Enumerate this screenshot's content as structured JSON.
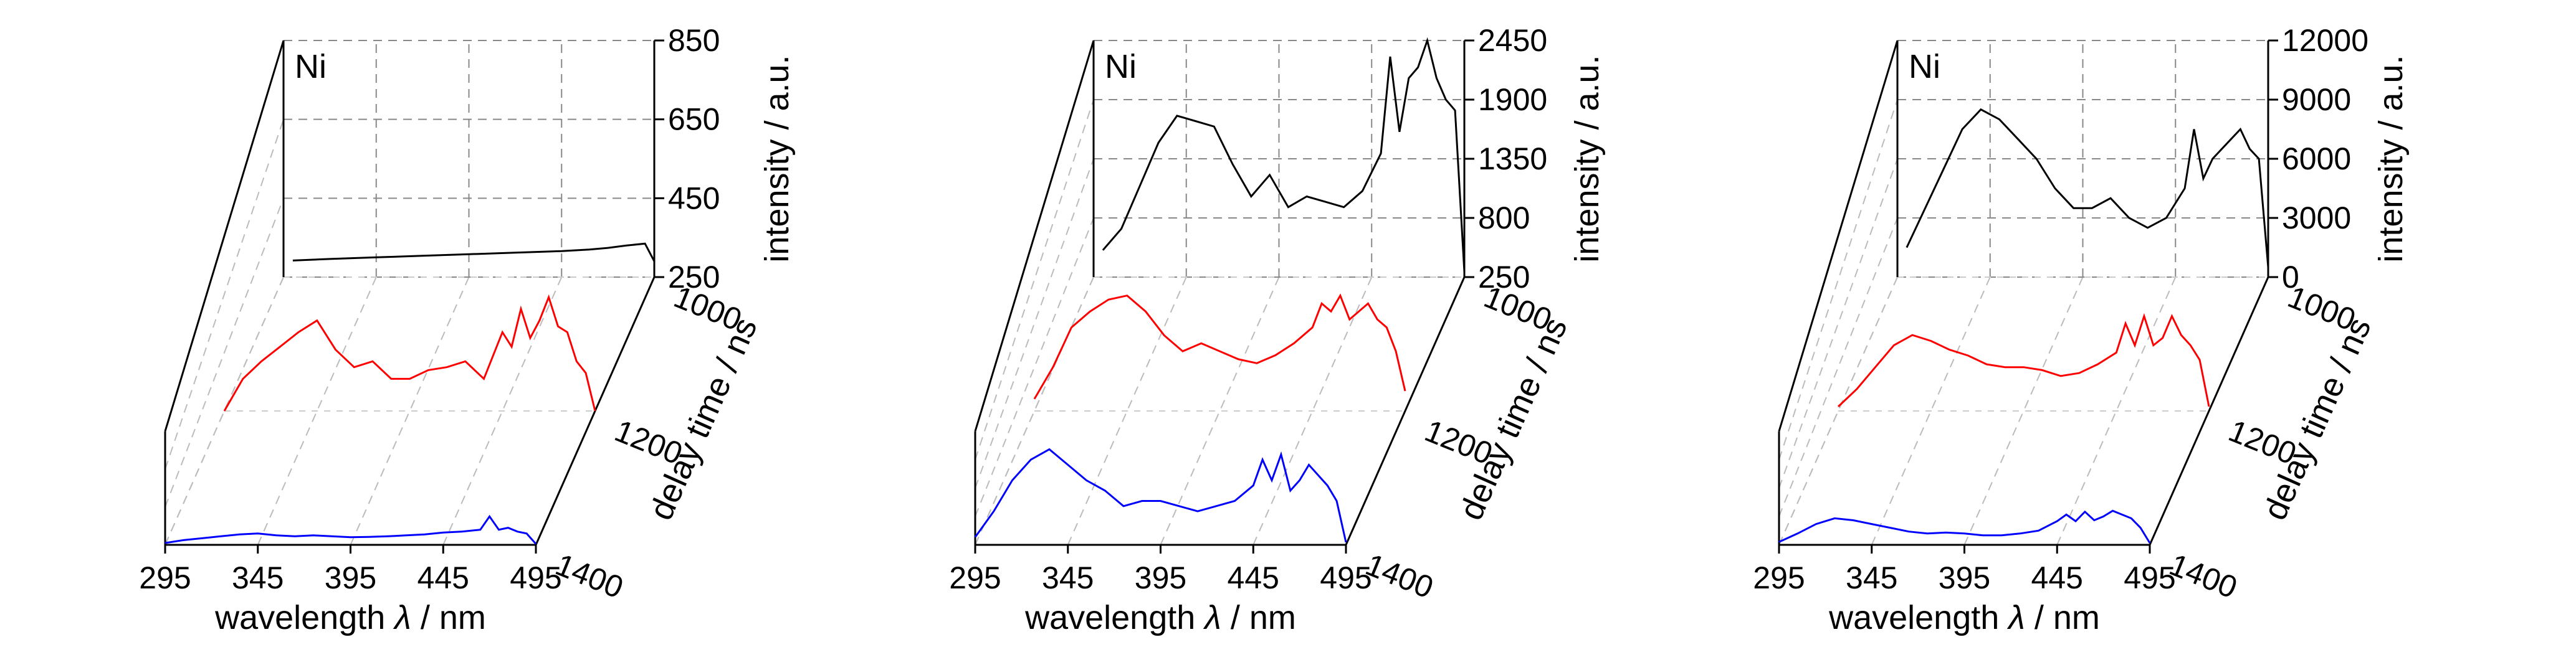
{
  "chart_data": [
    {
      "type": "line",
      "label": "Ni",
      "xlabel_prefix": "wavelength ",
      "xlabel_symbol": "λ",
      "xlabel_suffix": " / nm",
      "zlabel": "intensity / a.u.",
      "ylabel": "delay time / ns",
      "xlim": [
        295,
        495
      ],
      "xticks": [
        "295",
        "345",
        "395",
        "445",
        "495"
      ],
      "zlim": [
        250,
        850
      ],
      "zticks": [
        "250",
        "450",
        "650",
        "850"
      ],
      "yticks": [
        "1000",
        "1200",
        "1400"
      ],
      "series": [
        {
          "delay": 1000,
          "color": "#000000",
          "x": [
            300,
            320,
            345,
            370,
            395,
            420,
            445,
            460,
            470,
            480,
            490,
            495
          ],
          "y": [
            292,
            296,
            300,
            304,
            308,
            312,
            316,
            320,
            324,
            330,
            335,
            290
          ]
        },
        {
          "delay": 1200,
          "color": "#ff0000",
          "x": [
            295,
            305,
            315,
            325,
            335,
            345,
            355,
            365,
            375,
            385,
            395,
            405,
            415,
            425,
            435,
            445,
            450,
            455,
            460,
            465,
            470,
            475,
            480,
            485,
            490,
            495
          ],
          "y": [
            220,
            360,
            420,
            470,
            520,
            560,
            460,
            400,
            420,
            360,
            360,
            390,
            400,
            420,
            360,
            520,
            470,
            600,
            500,
            560,
            640,
            540,
            520,
            420,
            380,
            200
          ]
        },
        {
          "delay": 1400,
          "color": "#0000ff",
          "x": [
            295,
            305,
            315,
            325,
            335,
            345,
            355,
            365,
            375,
            385,
            395,
            405,
            415,
            425,
            435,
            445,
            455,
            465,
            470,
            475,
            480,
            485,
            490,
            495
          ],
          "y": [
            260,
            275,
            285,
            295,
            305,
            310,
            300,
            295,
            300,
            295,
            290,
            292,
            295,
            300,
            305,
            315,
            320,
            330,
            400,
            330,
            340,
            320,
            310,
            255
          ]
        }
      ]
    },
    {
      "type": "line",
      "label": "Ni",
      "xlabel_prefix": "wavelength ",
      "xlabel_symbol": "λ",
      "xlabel_suffix": " / nm",
      "zlabel": "intensity / a.u.",
      "ylabel": "delay time / ns",
      "xlim": [
        295,
        495
      ],
      "xticks": [
        "295",
        "345",
        "395",
        "445",
        "495"
      ],
      "zlim": [
        250,
        2450
      ],
      "zticks": [
        "250",
        "800",
        "1350",
        "1900",
        "2450"
      ],
      "yticks": [
        "1000",
        "1200",
        "1400"
      ],
      "series": [
        {
          "delay": 1000,
          "color": "#000000",
          "x": [
            300,
            310,
            320,
            330,
            340,
            350,
            360,
            370,
            380,
            390,
            400,
            410,
            420,
            430,
            440,
            450,
            455,
            460,
            465,
            470,
            475,
            480,
            485,
            490,
            495
          ],
          "y": [
            500,
            700,
            1100,
            1500,
            1750,
            1700,
            1650,
            1300,
            1000,
            1200,
            900,
            1000,
            950,
            900,
            1050,
            1400,
            2300,
            1600,
            2100,
            2200,
            2450,
            2100,
            1900,
            1800,
            300
          ]
        },
        {
          "delay": 1200,
          "color": "#ff0000",
          "x": [
            295,
            305,
            315,
            325,
            335,
            345,
            355,
            365,
            375,
            385,
            395,
            405,
            415,
            425,
            435,
            445,
            450,
            455,
            460,
            465,
            470,
            475,
            480,
            485,
            490,
            495
          ],
          "y": [
            400,
            800,
            1300,
            1500,
            1650,
            1700,
            1500,
            1200,
            1000,
            1100,
            1000,
            900,
            850,
            950,
            1100,
            1300,
            1600,
            1500,
            1700,
            1400,
            1500,
            1600,
            1400,
            1300,
            1000,
            500
          ]
        },
        {
          "delay": 1400,
          "color": "#0000ff",
          "x": [
            295,
            305,
            315,
            325,
            335,
            345,
            355,
            365,
            375,
            385,
            395,
            405,
            415,
            425,
            435,
            445,
            450,
            455,
            460,
            465,
            470,
            475,
            480,
            485,
            490,
            495
          ],
          "y": [
            400,
            900,
            1500,
            1900,
            2100,
            1800,
            1500,
            1300,
            1000,
            1100,
            1100,
            1000,
            900,
            1000,
            1100,
            1400,
            1900,
            1500,
            2000,
            1300,
            1500,
            1800,
            1600,
            1400,
            1100,
            300
          ]
        }
      ]
    },
    {
      "type": "line",
      "label": "Ni",
      "xlabel_prefix": "wavelength ",
      "xlabel_symbol": "λ",
      "xlabel_suffix": " / nm",
      "zlabel": "intensity / a.u.",
      "ylabel": "delay time / ns",
      "xlim": [
        295,
        495
      ],
      "xticks": [
        "295",
        "345",
        "395",
        "445",
        "495"
      ],
      "zlim": [
        0,
        12000
      ],
      "zticks": [
        "0",
        "3000",
        "6000",
        "9000",
        "12000"
      ],
      "yticks": [
        "1000",
        "1200",
        "1400"
      ],
      "series": [
        {
          "delay": 1000,
          "color": "#000000",
          "x": [
            300,
            310,
            320,
            330,
            340,
            350,
            360,
            370,
            380,
            390,
            400,
            410,
            420,
            430,
            440,
            450,
            455,
            460,
            465,
            470,
            475,
            480,
            485,
            490,
            495
          ],
          "y": [
            1500,
            3500,
            5500,
            7500,
            8500,
            8000,
            7000,
            6000,
            4500,
            3500,
            3500,
            4000,
            3000,
            2500,
            3000,
            4500,
            7500,
            5000,
            6000,
            6500,
            7000,
            7500,
            6500,
            6000,
            500
          ]
        },
        {
          "delay": 1200,
          "color": "#ff0000",
          "x": [
            295,
            305,
            315,
            325,
            335,
            345,
            355,
            365,
            375,
            385,
            395,
            405,
            415,
            425,
            435,
            445,
            450,
            455,
            460,
            465,
            470,
            475,
            480,
            485,
            490,
            495
          ],
          "y": [
            300,
            1500,
            3000,
            4500,
            5200,
            4800,
            4200,
            3800,
            3200,
            3000,
            3000,
            2800,
            2400,
            2600,
            3200,
            4000,
            6000,
            4500,
            6500,
            4500,
            5000,
            6500,
            5200,
            4500,
            3500,
            300
          ]
        },
        {
          "delay": 1400,
          "color": "#0000ff",
          "x": [
            295,
            305,
            315,
            325,
            335,
            345,
            355,
            365,
            375,
            385,
            395,
            405,
            415,
            425,
            435,
            445,
            450,
            455,
            460,
            465,
            470,
            475,
            480,
            485,
            490,
            495
          ],
          "y": [
            300,
            1200,
            2200,
            2800,
            2600,
            2200,
            1800,
            1400,
            1200,
            1300,
            1200,
            1000,
            1000,
            1200,
            1500,
            2500,
            3200,
            2500,
            3500,
            2600,
            3000,
            3600,
            3200,
            2800,
            1800,
            200
          ]
        }
      ]
    }
  ]
}
